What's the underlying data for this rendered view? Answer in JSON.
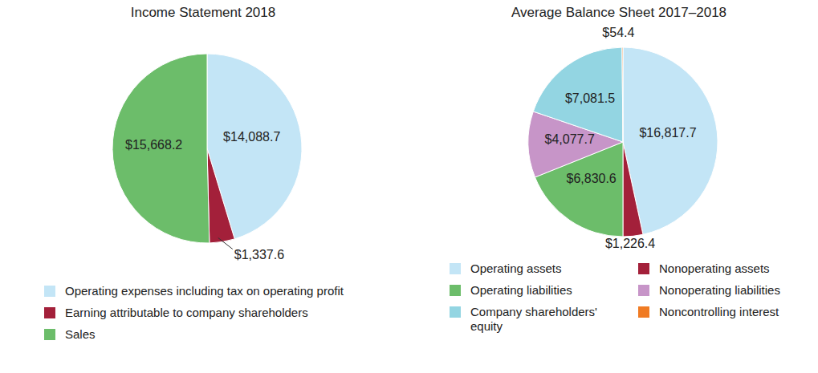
{
  "chart_data": [
    {
      "type": "pie",
      "title": "Income Statement 2018",
      "categories": [
        "Operating expenses including tax on operating profit",
        "Earning attributable to company shareholders",
        "Sales"
      ],
      "values": [
        14088.7,
        1337.6,
        15668.2
      ],
      "value_labels": [
        "$14,088.7",
        "$1,337.6",
        "$15,668.2"
      ],
      "colors": [
        "#c3e5f6",
        "#a3203a",
        "#6cbd6a"
      ],
      "data_labels": true,
      "legend": "bottom"
    },
    {
      "type": "pie",
      "title": "Average Balance Sheet 2017–2018",
      "categories": [
        "Operating assets",
        "Nonoperating assets",
        "Operating liabilities",
        "Nonoperating liabilities",
        "Company shareholders' equity",
        "Noncontrolling interest"
      ],
      "values": [
        16817.7,
        1226.4,
        6830.6,
        4077.7,
        7081.5,
        54.4
      ],
      "value_labels": [
        "$16,817.7",
        "$1,226.4",
        "$6,830.6",
        "$4,077.7",
        "$7,081.5",
        "$54.4"
      ],
      "colors": [
        "#c3e5f6",
        "#a3203a",
        "#6cbd6a",
        "#c795c8",
        "#93d5e2",
        "#f07b23"
      ],
      "data_labels": true,
      "legend": "bottom"
    }
  ]
}
